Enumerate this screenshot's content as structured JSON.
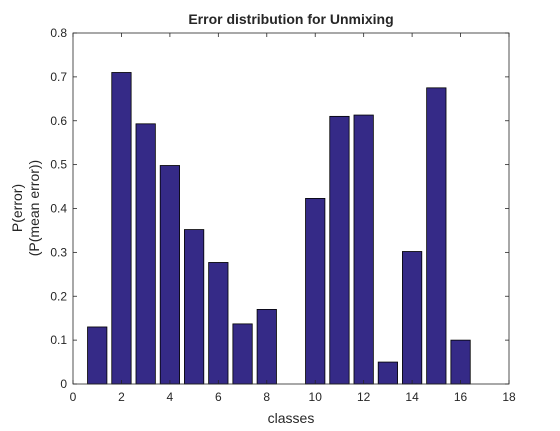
{
  "chart_data": {
    "type": "bar",
    "title": "Error distribution for Unmixing",
    "xlabel": "classes",
    "ylabel": [
      "P(error)",
      "(P(mean error))"
    ],
    "categories": [
      1,
      2,
      3,
      4,
      5,
      6,
      7,
      8,
      9,
      10,
      11,
      12,
      13,
      14,
      15,
      16
    ],
    "values": [
      0.13,
      0.71,
      0.593,
      0.498,
      0.352,
      0.277,
      0.137,
      0.17,
      0,
      0.423,
      0.61,
      0.613,
      0.05,
      0.302,
      0.675,
      0.1
    ],
    "xlim": [
      0,
      18
    ],
    "ylim": [
      0,
      0.8
    ],
    "xticks": [
      0,
      2,
      4,
      6,
      8,
      10,
      12,
      14,
      16,
      18
    ],
    "yticks": [
      0,
      0.1,
      0.2,
      0.3,
      0.4,
      0.5,
      0.6,
      0.7,
      0.8
    ],
    "xtick_labels": [
      "0",
      "2",
      "4",
      "6",
      "8",
      "10",
      "12",
      "14",
      "16",
      "18"
    ],
    "ytick_labels": [
      "0",
      "0.1",
      "0.2",
      "0.3",
      "0.4",
      "0.5",
      "0.6",
      "0.7",
      "0.8"
    ],
    "bar_color": "#352a87",
    "grid": false,
    "box": true
  }
}
